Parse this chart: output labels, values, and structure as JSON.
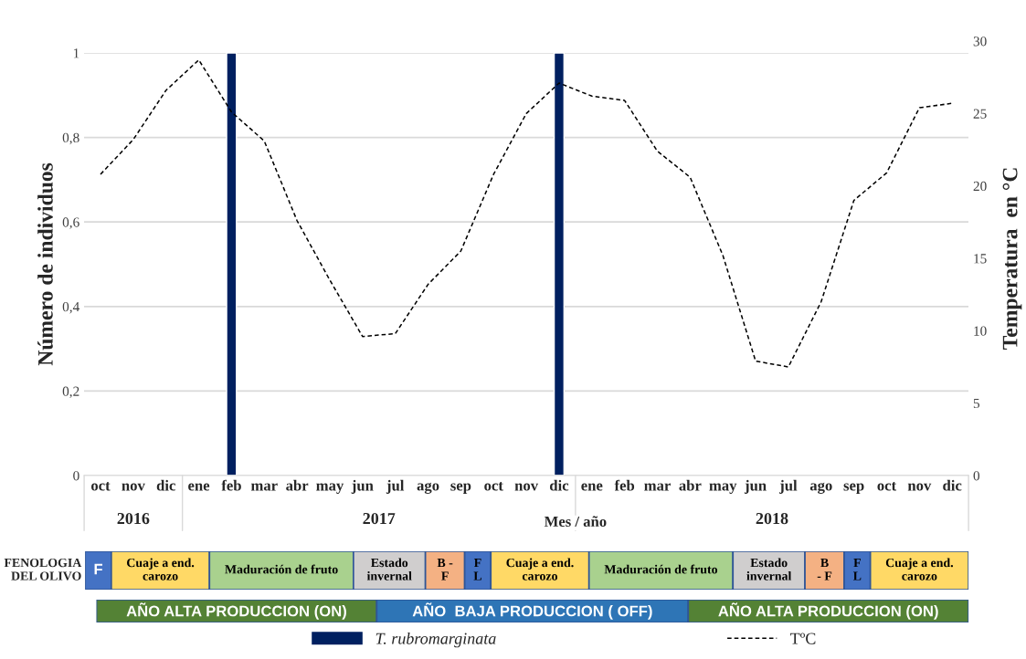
{
  "chart_data": [
    {
      "type": "bar",
      "xlabel": "Mes / año",
      "ylabel": "Número de individuos",
      "y2label": "Temperatura  en °C",
      "categories": [
        "oct",
        "nov",
        "dic",
        "ene",
        "feb",
        "mar",
        "abr",
        "may",
        "jun",
        "jul",
        "ago",
        "sep",
        "oct",
        "nov",
        "dic",
        "ene",
        "feb",
        "mar",
        "abr",
        "may",
        "jun",
        "jul",
        "ago",
        "sep",
        "oct",
        "nov",
        "dic"
      ],
      "series": [
        {
          "name": "T. rubromarginata",
          "color": "#002060",
          "values": [
            null,
            null,
            null,
            null,
            1,
            null,
            null,
            null,
            null,
            null,
            null,
            null,
            null,
            null,
            1,
            null,
            null,
            null,
            null,
            null,
            null,
            null,
            null,
            null,
            null,
            null,
            null
          ]
        },
        {
          "name": "TºC",
          "type": "line",
          "axis": "y2",
          "color": "#000000",
          "line_style": "dashed",
          "marker": "none",
          "values": [
            20.8,
            23.2,
            26.6,
            28.7,
            25.1,
            23.1,
            17.6,
            13.5,
            9.6,
            9.8,
            13.2,
            15.5,
            20.8,
            25.0,
            27.1,
            26.2,
            25.9,
            22.4,
            20.6,
            15.2,
            7.9,
            7.5,
            12.0,
            19.0,
            20.9,
            25.4,
            25.7
          ]
        }
      ],
      "ylim": [
        0,
        1
      ],
      "yticks": [
        0,
        {
          "value": 0.2,
          "label": "0,2"
        },
        {
          "value": 0.4,
          "label": "0,4"
        },
        {
          "value": 0.6,
          "label": "0,6"
        },
        {
          "value": 0.8,
          "label": "0,8"
        },
        1
      ],
      "y2lim": [
        0,
        30
      ],
      "y2ticks": [
        0,
        5,
        10,
        15,
        20,
        25,
        30
      ],
      "grid": "y",
      "legend": "bottom",
      "annotations": [
        "2016",
        "2017",
        "2018"
      ]
    },
    {
      "type": "other",
      "title": "FENOLOGIA\nDEL OLIVO",
      "annotations": [
        "F",
        "Cuaje a end.\ncarozo",
        "Maduración de fruto",
        "Estado\ninvernal",
        "B -\nF",
        "F\nL",
        "Cuaje a end.\ncarozo",
        "Maduración de fruto",
        "Estado\ninvernal",
        "B\n- F",
        "F\nL",
        "Cuaje a end.\ncarozo"
      ],
      "colors": [
        "#4472c4",
        "#ffd966",
        "#a9d18e",
        "#d0cece",
        "#f4b183",
        "#4472c4",
        "#ffd966",
        "#a9d18e",
        "#d0cece",
        "#f4b183",
        "#4472c4",
        "#ffd966"
      ]
    },
    {
      "type": "other",
      "annotations": [
        "AÑO ALTA PRODUCCION (ON)",
        "AÑO  BAJA PRODUCCION ( OFF)",
        "AÑO ALTA PRODUCCION (ON)"
      ],
      "colors": [
        "#548235",
        "#2e75b6",
        "#548235"
      ]
    }
  ]
}
